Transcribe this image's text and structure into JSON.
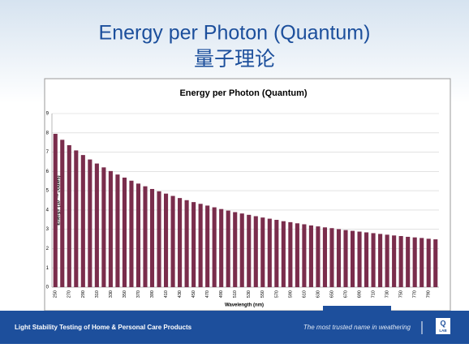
{
  "slide": {
    "title": "Energy per Photon (Quantum)",
    "subtitle": "量子理论",
    "footer_left": "Light Stability Testing of Home & Personal Care Products",
    "footer_right": "The most trusted name in weathering",
    "logo": [
      "Q",
      "LAB"
    ]
  },
  "chart_data": {
    "type": "bar",
    "title": "Energy per Photon (Quantum)",
    "x_label": "Wavelength (nm)",
    "y_label": "Energy (10⁻¹⁹ Joules)",
    "categories": [
      "250",
      null,
      "270",
      null,
      "290",
      null,
      "310",
      null,
      "330",
      null,
      "350",
      null,
      "370",
      null,
      "390",
      null,
      "410",
      null,
      "430",
      null,
      "450",
      null,
      "470",
      null,
      "490",
      null,
      "510",
      null,
      "530",
      null,
      "550",
      null,
      "570",
      null,
      "590",
      null,
      "610",
      null,
      "630",
      null,
      "650",
      null,
      "670",
      null,
      "690",
      null,
      "710",
      null,
      "730",
      null,
      "750",
      null,
      "770",
      null,
      "790",
      null
    ],
    "values": [
      7.95,
      7.64,
      7.36,
      7.09,
      6.85,
      6.62,
      6.41,
      6.21,
      6.02,
      5.84,
      5.68,
      5.52,
      5.37,
      5.23,
      5.09,
      4.97,
      4.85,
      4.73,
      4.62,
      4.51,
      4.41,
      4.32,
      4.23,
      4.14,
      4.05,
      3.97,
      3.89,
      3.82,
      3.75,
      3.68,
      3.61,
      3.55,
      3.49,
      3.42,
      3.37,
      3.31,
      3.26,
      3.2,
      3.15,
      3.1,
      3.06,
      3.01,
      2.96,
      2.92,
      2.88,
      2.84,
      2.8,
      2.76,
      2.72,
      2.68,
      2.65,
      2.61,
      2.58,
      2.55,
      2.51,
      2.48
    ],
    "color": "#7a2d4c",
    "ylim": [
      0,
      9
    ],
    "yticks": [
      0,
      1,
      2,
      3,
      4,
      5,
      6,
      7,
      8,
      9
    ],
    "grid": true
  }
}
